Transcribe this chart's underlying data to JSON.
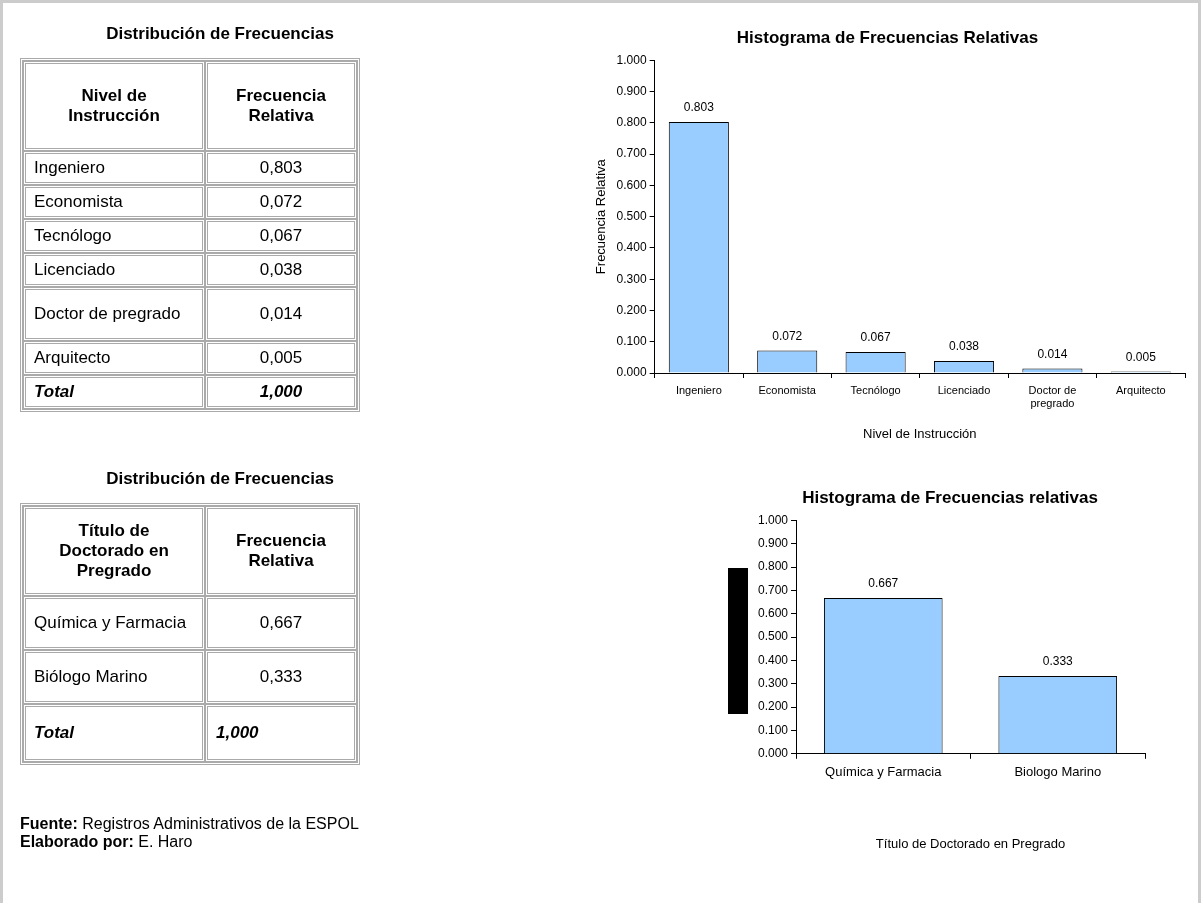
{
  "chart_data": [
    {
      "type": "other",
      "title": "Distribución de Frecuencias",
      "xlabel": "Nivel de Instrucción",
      "ylabel": "Frecuencia Relativa",
      "categories": [
        "Ingeniero",
        "Economista",
        "Tecnólogo",
        "Licenciado",
        "Doctor de pregrado",
        "Arquitecto"
      ],
      "value_labels": [
        "0,803",
        "0,072",
        "0,067",
        "0,038",
        "0,014",
        "0,005"
      ],
      "annotations": [
        "Total",
        "1,000"
      ]
    },
    {
      "type": "bar",
      "title": "Histograma de Frecuencias Relativas",
      "xlabel": "Nivel de Instrucción",
      "ylabel": "Frecuencia Relativa",
      "categories": [
        "Ingeniero",
        "Economista",
        "Tecnólogo",
        "Licenciado",
        "Doctor de pregrado",
        "Arquitecto"
      ],
      "values": [
        0.803,
        0.072,
        0.067,
        0.038,
        0.014,
        0.005
      ],
      "value_labels": [
        "0.803",
        "0.072",
        "0.067",
        "0.038",
        "0.014",
        "0.005"
      ],
      "color": "#99ccff",
      "ylim": [
        0,
        1
      ],
      "yticks": [
        {
          "value": 0,
          "label": "0.000"
        },
        {
          "value": 0.1,
          "label": "0.100"
        },
        {
          "value": 0.2,
          "label": "0.200"
        },
        {
          "value": 0.3,
          "label": "0.300"
        },
        {
          "value": 0.4,
          "label": "0.400"
        },
        {
          "value": 0.5,
          "label": "0.500"
        },
        {
          "value": 0.6,
          "label": "0.600"
        },
        {
          "value": 0.7,
          "label": "0.700"
        },
        {
          "value": 0.8,
          "label": "0.800"
        },
        {
          "value": 0.9,
          "label": "0.900"
        },
        {
          "value": 1,
          "label": "1.000"
        }
      ],
      "grid": false,
      "legend": false
    },
    {
      "type": "other",
      "title": "Distribución de Frecuencias",
      "xlabel": "Título de Doctorado en Pregrado",
      "ylabel": "Frecuencia Relativa",
      "categories": [
        "Química y Farmacia",
        "Biólogo Marino"
      ],
      "value_labels": [
        "0,667",
        "0,333"
      ],
      "annotations": [
        "Total",
        "1,000",
        "Fuente: Registros Administrativos de la ESPOL",
        "Elaborado por: E. Haro"
      ]
    },
    {
      "type": "bar",
      "title": "Histograma de Frecuencias relativas",
      "xlabel": "Título de Doctorado en Pregrado",
      "categories": [
        "Química y Farmacia",
        "Biologo Marino"
      ],
      "values": [
        0.667,
        0.333
      ],
      "value_labels": [
        "0.667",
        "0.333"
      ],
      "color": "#99ccff",
      "ylim": [
        0,
        1
      ],
      "yticks": [
        {
          "value": 0,
          "label": "0.000"
        },
        {
          "value": 0.1,
          "label": "0.100"
        },
        {
          "value": 0.2,
          "label": "0.200"
        },
        {
          "value": 0.3,
          "label": "0.300"
        },
        {
          "value": 0.4,
          "label": "0.400"
        },
        {
          "value": 0.5,
          "label": "0.500"
        },
        {
          "value": 0.6,
          "label": "0.600"
        },
        {
          "value": 0.7,
          "label": "0.700"
        },
        {
          "value": 0.8,
          "label": "0.800"
        },
        {
          "value": 0.9,
          "label": "0.900"
        },
        {
          "value": 1,
          "label": "1.000"
        }
      ],
      "grid": false,
      "legend": false
    }
  ]
}
